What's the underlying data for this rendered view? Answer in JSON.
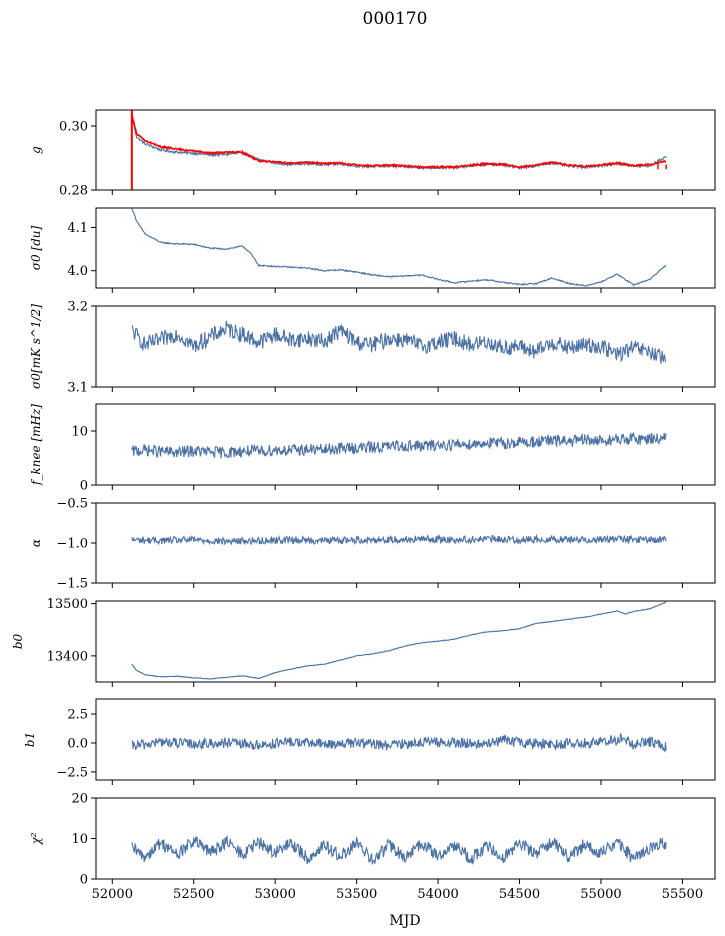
{
  "figure": {
    "title": "000170",
    "xlabel": "MJD"
  },
  "colors": {
    "series": "#4c72a4",
    "overlay": "#ff0000",
    "axes": "#000000"
  },
  "chart_data": [
    {
      "type": "line",
      "ylabel": "g",
      "xlim": [
        51900,
        55700
      ],
      "ylim": [
        0.28,
        0.305
      ],
      "yticks": [
        "0.28",
        "0.30"
      ],
      "ytick_values": [
        0.28,
        0.3
      ],
      "series": [
        {
          "x": [
            52120,
            52150,
            52200,
            52300,
            52400,
            52500,
            52600,
            52700,
            52800,
            52900,
            53000,
            53100,
            53200,
            53300,
            53400,
            53500,
            53600,
            53700,
            53800,
            53900,
            54000,
            54100,
            54200,
            54300,
            54400,
            54500,
            54600,
            54700,
            54800,
            54900,
            55000,
            55100,
            55200,
            55300,
            55400
          ],
          "y": [
            0.303,
            0.2965,
            0.2945,
            0.2925,
            0.2918,
            0.2915,
            0.291,
            0.2912,
            0.2915,
            0.2895,
            0.2885,
            0.288,
            0.2883,
            0.288,
            0.2882,
            0.2875,
            0.2873,
            0.2875,
            0.2872,
            0.287,
            0.287,
            0.287,
            0.2875,
            0.288,
            0.2878,
            0.287,
            0.2875,
            0.2885,
            0.2875,
            0.2872,
            0.2876,
            0.2882,
            0.2875,
            0.2875,
            0.2905
          ]
        },
        {
          "x": [
            52120,
            52150,
            52200,
            52300,
            52400,
            52500,
            52600,
            52700,
            52800,
            52900,
            53000,
            53100,
            53200,
            53300,
            53400,
            53500,
            53600,
            53700,
            53800,
            53900,
            54000,
            54100,
            54200,
            54300,
            54400,
            54500,
            54600,
            54700,
            54800,
            54900,
            55000,
            55100,
            55200,
            55300,
            55400
          ],
          "y": [
            0.3035,
            0.2975,
            0.2955,
            0.2935,
            0.2928,
            0.2922,
            0.2915,
            0.2918,
            0.2918,
            0.289,
            0.2888,
            0.2884,
            0.2886,
            0.2883,
            0.2884,
            0.2878,
            0.2875,
            0.2878,
            0.2875,
            0.2872,
            0.2872,
            0.2872,
            0.2878,
            0.2882,
            0.288,
            0.2872,
            0.2878,
            0.2886,
            0.2878,
            0.2874,
            0.2878,
            0.2884,
            0.2876,
            0.288,
            0.289
          ]
        }
      ]
    },
    {
      "type": "line",
      "ylabel": "σ0 [du]",
      "xlim": [
        51900,
        55700
      ],
      "ylim": [
        3.96,
        4.145
      ],
      "yticks": [
        "4.0",
        "4.1"
      ],
      "ytick_values": [
        4.0,
        4.1
      ],
      "series": [
        {
          "x": [
            52120,
            52150,
            52200,
            52300,
            52400,
            52500,
            52600,
            52700,
            52800,
            52850,
            52900,
            53000,
            53100,
            53200,
            53300,
            53400,
            53500,
            53600,
            53700,
            53800,
            53900,
            54000,
            54100,
            54200,
            54300,
            54400,
            54500,
            54600,
            54700,
            54800,
            54900,
            55000,
            55100,
            55200,
            55300,
            55400
          ],
          "y": [
            4.145,
            4.115,
            4.085,
            4.065,
            4.062,
            4.061,
            4.052,
            4.05,
            4.057,
            4.04,
            4.012,
            4.01,
            4.008,
            4.006,
            4.0,
            4.002,
            3.997,
            3.99,
            3.986,
            3.988,
            3.99,
            3.98,
            3.972,
            3.976,
            3.979,
            3.973,
            3.968,
            3.97,
            3.983,
            3.971,
            3.965,
            3.974,
            3.992,
            3.967,
            3.98,
            4.013
          ]
        }
      ]
    },
    {
      "type": "line",
      "ylabel": "σ0[mK s^1/2]",
      "xlim": [
        51900,
        55700
      ],
      "ylim": [
        3.1,
        3.2
      ],
      "yticks": [
        "3.1",
        "3.2"
      ],
      "ytick_values": [
        3.1,
        3.2
      ],
      "series": [
        {
          "x": [
            52120,
            52200,
            52300,
            52400,
            52500,
            52600,
            52700,
            52800,
            52900,
            53000,
            53100,
            53200,
            53300,
            53400,
            53500,
            53600,
            53700,
            53800,
            53900,
            54000,
            54100,
            54200,
            54300,
            54400,
            54500,
            54600,
            54700,
            54800,
            54900,
            55000,
            55100,
            55200,
            55300,
            55400
          ],
          "y": [
            3.17,
            3.152,
            3.158,
            3.166,
            3.15,
            3.162,
            3.172,
            3.165,
            3.155,
            3.165,
            3.158,
            3.16,
            3.156,
            3.17,
            3.155,
            3.152,
            3.16,
            3.158,
            3.15,
            3.155,
            3.16,
            3.152,
            3.156,
            3.148,
            3.15,
            3.143,
            3.155,
            3.148,
            3.152,
            3.15,
            3.14,
            3.148,
            3.143,
            3.132
          ]
        }
      ]
    },
    {
      "type": "line",
      "ylabel": "f_knee [mHz]",
      "xlim": [
        51900,
        55700
      ],
      "ylim": [
        0,
        15
      ],
      "yticks": [
        "0",
        "10"
      ],
      "ytick_values": [
        0,
        10
      ],
      "series": [
        {
          "x": [
            52120,
            52200,
            52300,
            52400,
            52500,
            52600,
            52700,
            52800,
            52900,
            53000,
            53100,
            53200,
            53300,
            53400,
            53500,
            53600,
            53700,
            53800,
            53900,
            54000,
            54100,
            54200,
            54300,
            54400,
            54500,
            54600,
            54700,
            54800,
            54900,
            55000,
            55100,
            55200,
            55300,
            55400
          ],
          "y": [
            6.2,
            6.5,
            6.2,
            6.0,
            6.3,
            6.1,
            6.0,
            6.3,
            6.2,
            6.5,
            6.4,
            6.6,
            6.5,
            6.8,
            6.9,
            7.0,
            7.1,
            7.3,
            7.2,
            7.4,
            7.5,
            7.6,
            7.8,
            7.7,
            7.9,
            8.0,
            8.2,
            8.1,
            8.3,
            8.2,
            8.4,
            8.5,
            8.6,
            8.8
          ]
        }
      ]
    },
    {
      "type": "line",
      "ylabel": "α",
      "xlim": [
        51900,
        55700
      ],
      "ylim": [
        -1.5,
        -0.5
      ],
      "yticks": [
        "−1.5",
        "−1.0",
        "−0.5"
      ],
      "ytick_values": [
        -1.5,
        -1.0,
        -0.5
      ],
      "series": [
        {
          "x": [
            52120,
            52300,
            52500,
            52700,
            52900,
            53100,
            53300,
            53500,
            53700,
            53900,
            54100,
            54300,
            54500,
            54700,
            54900,
            55100,
            55300,
            55400
          ],
          "y": [
            -0.96,
            -0.97,
            -0.96,
            -0.98,
            -0.97,
            -0.96,
            -0.97,
            -0.96,
            -0.96,
            -0.95,
            -0.96,
            -0.95,
            -0.96,
            -0.95,
            -0.96,
            -0.95,
            -0.96,
            -0.96
          ]
        }
      ]
    },
    {
      "type": "line",
      "ylabel": "b0",
      "xlim": [
        51900,
        55700
      ],
      "ylim": [
        13350,
        13505
      ],
      "yticks": [
        "13400",
        "13500"
      ],
      "ytick_values": [
        13400,
        13500
      ],
      "series": [
        {
          "x": [
            52120,
            52150,
            52200,
            52300,
            52400,
            52500,
            52600,
            52700,
            52800,
            52900,
            52950,
            53000,
            53100,
            53200,
            53300,
            53400,
            53500,
            53600,
            53700,
            53800,
            53900,
            54000,
            54100,
            54200,
            54300,
            54400,
            54500,
            54600,
            54700,
            54800,
            54900,
            55000,
            55100,
            55150,
            55200,
            55300,
            55400
          ],
          "y": [
            13384,
            13372,
            13364,
            13360,
            13361,
            13358,
            13356,
            13359,
            13362,
            13357,
            13362,
            13368,
            13375,
            13381,
            13384,
            13392,
            13400,
            13404,
            13410,
            13419,
            13425,
            13428,
            13432,
            13440,
            13446,
            13448,
            13452,
            13462,
            13466,
            13470,
            13474,
            13480,
            13486,
            13480,
            13485,
            13490,
            13503
          ]
        }
      ]
    },
    {
      "type": "line",
      "ylabel": "b1",
      "xlim": [
        51900,
        55700
      ],
      "ylim": [
        -3.2,
        3.8
      ],
      "yticks": [
        "−2.5",
        "0.0",
        "2.5"
      ],
      "ytick_values": [
        -2.5,
        0,
        2.5
      ],
      "series": [
        {
          "x": [
            52120,
            52300,
            52500,
            52700,
            52900,
            53100,
            53300,
            53500,
            53700,
            53900,
            54100,
            54300,
            54400,
            54500,
            54700,
            54900,
            55100,
            55130,
            55200,
            55300,
            55400
          ],
          "y": [
            -0.3,
            0.1,
            -0.1,
            0.0,
            -0.2,
            0.1,
            -0.1,
            0.0,
            -0.2,
            0.1,
            0.0,
            -0.1,
            0.3,
            0.0,
            -0.1,
            0.0,
            0.2,
            0.5,
            -0.2,
            0.1,
            -0.3
          ]
        }
      ]
    },
    {
      "type": "line",
      "ylabel": "χ²",
      "xlim": [
        51900,
        55700
      ],
      "ylim": [
        0,
        20
      ],
      "yticks": [
        "0",
        "10",
        "20"
      ],
      "ytick_values": [
        0,
        10,
        20
      ],
      "series": [
        {
          "x": [
            52120,
            52200,
            52300,
            52400,
            52500,
            52600,
            52700,
            52800,
            52900,
            53000,
            53100,
            53200,
            53300,
            53400,
            53500,
            53600,
            53700,
            53800,
            53900,
            54000,
            54100,
            54200,
            54300,
            54400,
            54500,
            54600,
            54700,
            54800,
            54900,
            55000,
            55100,
            55200,
            55300,
            55400
          ],
          "y": [
            7.5,
            5.5,
            9.0,
            6.0,
            9.5,
            6.5,
            9.2,
            6.0,
            9.0,
            6.5,
            8.8,
            5.0,
            8.5,
            5.5,
            8.8,
            4.5,
            8.5,
            5.0,
            9.0,
            5.5,
            8.5,
            5.0,
            8.0,
            5.5,
            9.0,
            6.0,
            9.5,
            5.5,
            8.5,
            6.5,
            9.0,
            5.0,
            7.5,
            9.0
          ]
        }
      ]
    }
  ],
  "xticks": [
    "52000",
    "52500",
    "53000",
    "53500",
    "54000",
    "54500",
    "55000",
    "55500"
  ],
  "xtick_values": [
    52000,
    52500,
    53000,
    53500,
    54000,
    54500,
    55000,
    55500
  ]
}
